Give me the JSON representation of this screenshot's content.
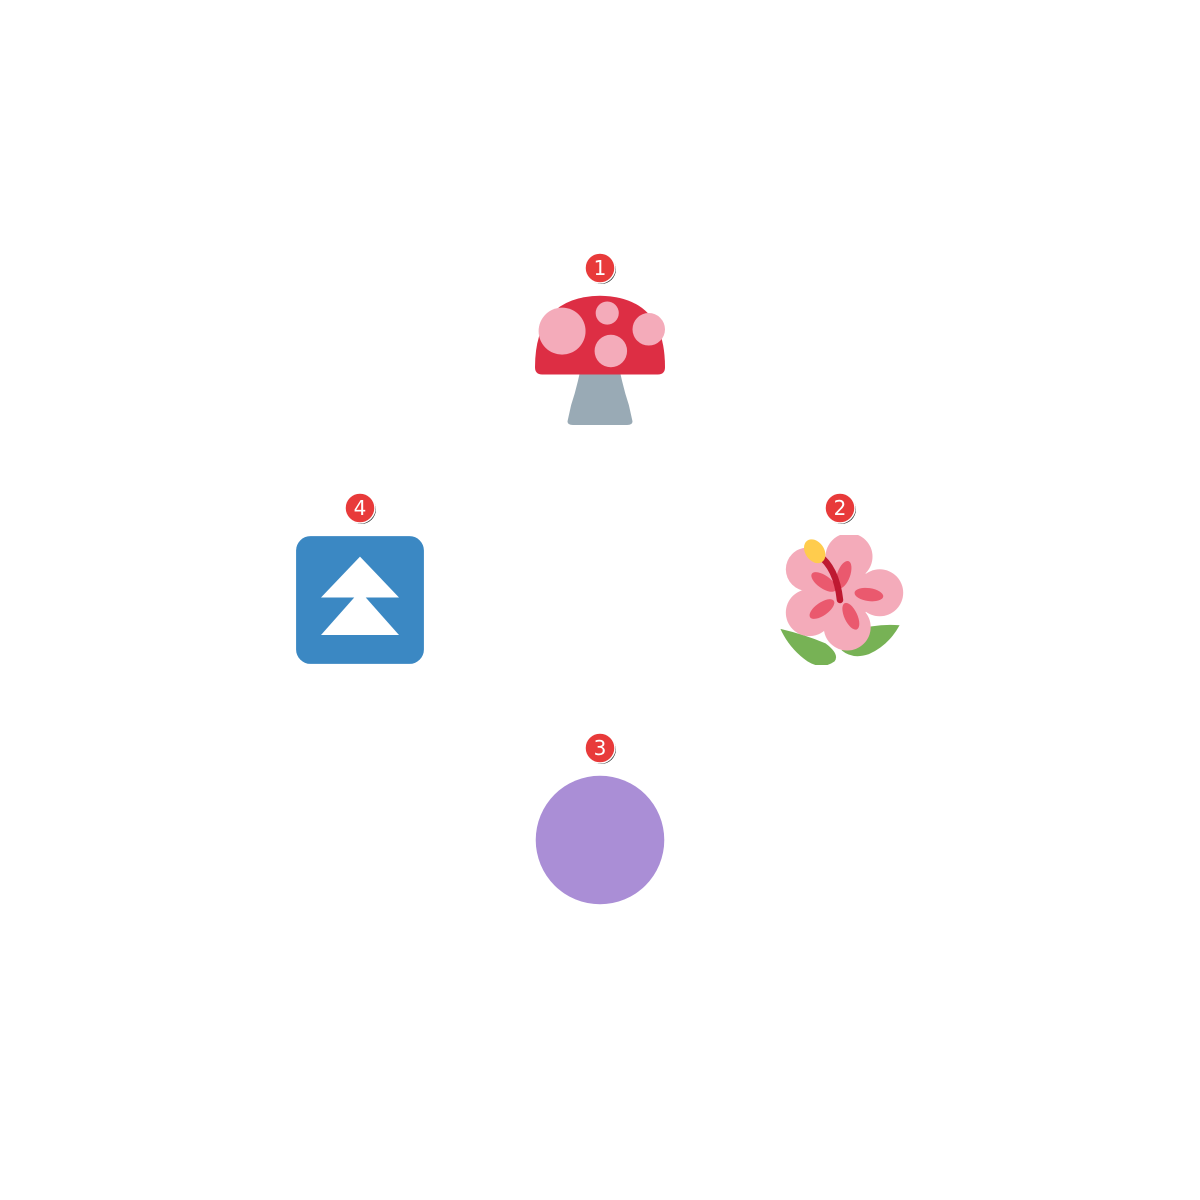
{
  "items": [
    {
      "number": "1",
      "icon": "mushroom-icon",
      "colors": {
        "cap": "#dd2e44",
        "spots": "#f4abba",
        "stem": "#99aab5"
      }
    },
    {
      "number": "2",
      "icon": "hibiscus-icon",
      "colors": {
        "petals": "#f4abba",
        "center": "#ea596e",
        "stamen": "#be1931",
        "pollen": "#ffcc4d",
        "leaves": "#77b255"
      }
    },
    {
      "number": "3",
      "icon": "purple-circle-icon",
      "colors": {
        "fill": "#aa8ed6"
      }
    },
    {
      "number": "4",
      "icon": "fast-up-button-icon",
      "colors": {
        "background": "#3b88c3",
        "arrows": "#ffffff"
      }
    }
  ],
  "badge_colors": {
    "fill": "#e83a3a",
    "stroke": "#ffffff",
    "shadow": "#222222"
  }
}
